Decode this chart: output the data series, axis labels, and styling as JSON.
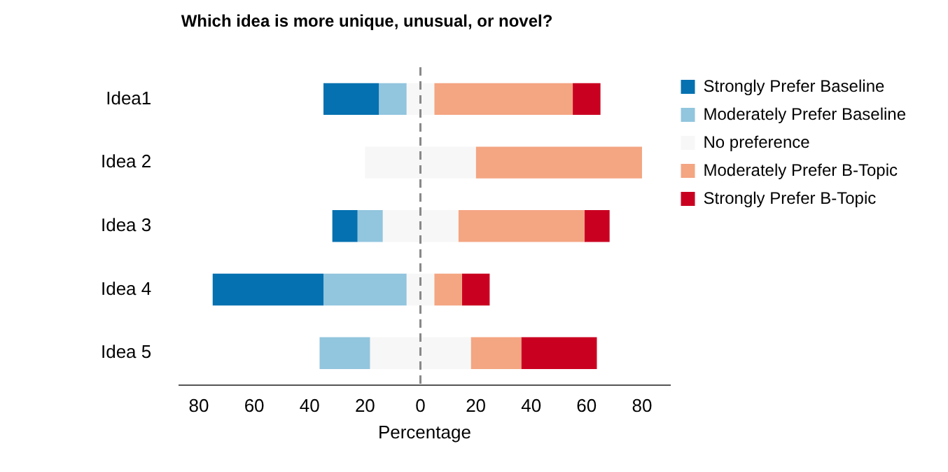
{
  "chart_data": {
    "type": "bar",
    "orientation": "horizontal",
    "title": "Which idea is more unique, unusual, or novel?",
    "xlabel": "Percentage",
    "categories": [
      "Idea1",
      "Idea 2",
      "Idea 3",
      "Idea 4",
      "Idea 5"
    ],
    "series": [
      {
        "name": "Strongly Prefer Baseline",
        "color": "#0571b0",
        "base": [
          -35,
          null,
          -31.8,
          -75,
          null
        ],
        "values": [
          20,
          null,
          9.1,
          40,
          null
        ]
      },
      {
        "name": "Moderately Prefer Baseline",
        "color": "#92c5de",
        "base": [
          -15,
          null,
          -22.7,
          -35,
          -36.4
        ],
        "values": [
          10,
          null,
          9.1,
          30,
          18.2
        ]
      },
      {
        "name": "No preference",
        "color": "#f7f7f7",
        "base": [
          -5,
          -20,
          -13.6,
          -5,
          -18.2
        ],
        "values": [
          10,
          40,
          27.3,
          10,
          36.4
        ]
      },
      {
        "name": "Moderately Prefer B-Topic",
        "color": "#f4a582",
        "base": [
          5,
          20,
          13.7,
          5,
          18.2
        ],
        "values": [
          50,
          60,
          45.5,
          10,
          18.2
        ]
      },
      {
        "name": "Strongly Prefer B-Topic",
        "color": "#ca0020",
        "base": [
          55,
          null,
          59.2,
          15,
          36.4
        ],
        "values": [
          10,
          null,
          9.1,
          10,
          27.3
        ]
      }
    ],
    "xlim": [
      -87,
      90
    ],
    "xticks": [
      {
        "value": -80,
        "label": "80"
      },
      {
        "value": -60,
        "label": "60"
      },
      {
        "value": -40,
        "label": "40"
      },
      {
        "value": -20,
        "label": "20"
      },
      0,
      20,
      40,
      60,
      80
    ],
    "ref_lines": [
      {
        "axis": "x",
        "value": 0,
        "color": "#888888",
        "line_style": "dashed"
      }
    ],
    "grid": false,
    "legend": "top right"
  }
}
